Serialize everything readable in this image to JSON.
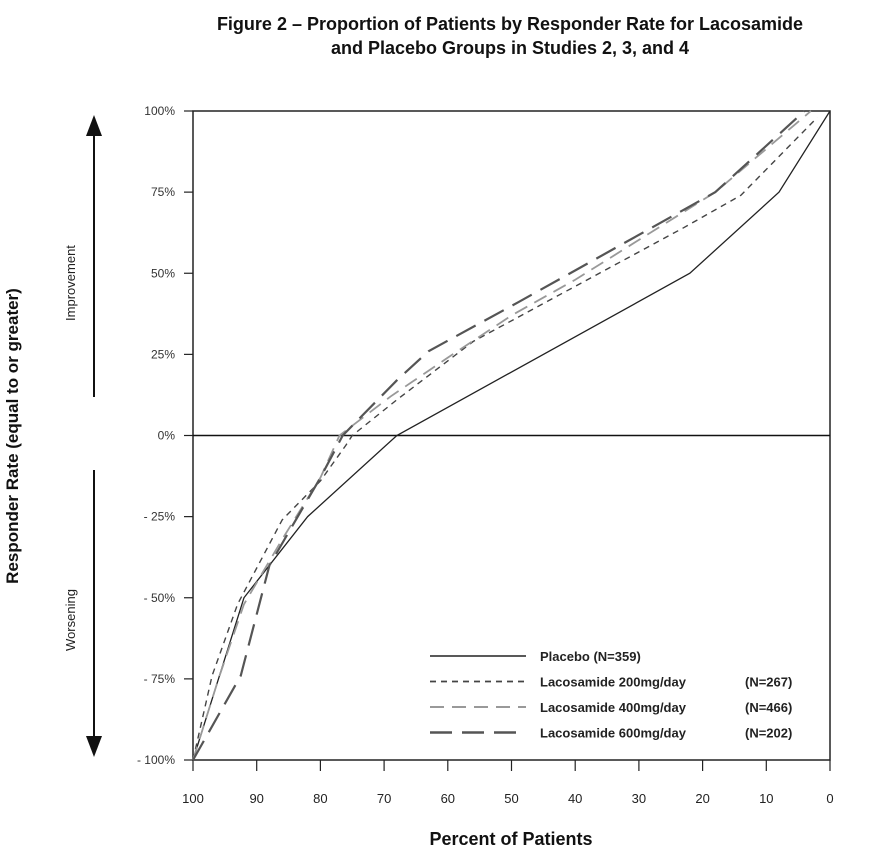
{
  "chart_data": {
    "type": "line",
    "title_line1": "Figure 2 – Proportion of Patients by Responder Rate for Lacosamide",
    "title_line2": "and Placebo Groups in Studies 2, 3, and 4",
    "xlabel": "Percent of Patients",
    "ylabel": "Responder Rate (equal to or greater)",
    "xlim": [
      100,
      0
    ],
    "ylim": [
      -100,
      100
    ],
    "x_reversed": true,
    "xticks": [
      100,
      90,
      80,
      70,
      60,
      50,
      40,
      30,
      20,
      10,
      0
    ],
    "yticks": [
      100,
      75,
      50,
      25,
      0,
      -25,
      -50,
      -75,
      -100
    ],
    "ytick_labels": [
      "100%",
      "75%",
      "50%",
      "25%",
      "0%",
      "- 25%",
      "- 50%",
      "- 75%",
      "- 100%"
    ],
    "annotations": {
      "improvement": "Improvement",
      "worsening": "Worsening"
    },
    "grid": false,
    "reference_line_y": 0,
    "legend_position": "bottom-right",
    "series": [
      {
        "name": "Placebo (N=359)",
        "label": "Placebo (N=359)",
        "n": "",
        "color": "#222222",
        "dash": "solid",
        "points": [
          [
            100,
            -100
          ],
          [
            92,
            -50
          ],
          [
            82,
            -25
          ],
          [
            68,
            0
          ],
          [
            22,
            50
          ],
          [
            8,
            75
          ],
          [
            0,
            100
          ]
        ]
      },
      {
        "name": "Lacosamide 200mg/day (N=267)",
        "label": "Lacosamide 200mg/day",
        "n": "(N=267)",
        "color": "#444444",
        "dash": "short",
        "points": [
          [
            100,
            -100
          ],
          [
            97,
            -74
          ],
          [
            93,
            -52
          ],
          [
            86,
            -26
          ],
          [
            80,
            -14
          ],
          [
            76,
            -3
          ],
          [
            75,
            0
          ],
          [
            68,
            11
          ],
          [
            56,
            29
          ],
          [
            23,
            64
          ],
          [
            14,
            74
          ],
          [
            2,
            98
          ]
        ]
      },
      {
        "name": "Lacosamide 400mg/day (N=466)",
        "label": "Lacosamide 400mg/day",
        "n": "(N=466)",
        "color": "#999999",
        "dash": "medium",
        "points": [
          [
            100,
            -100
          ],
          [
            96,
            -75
          ],
          [
            92,
            -52
          ],
          [
            86,
            -32
          ],
          [
            80,
            -13
          ],
          [
            77,
            0
          ],
          [
            69,
            12
          ],
          [
            60,
            24
          ],
          [
            50,
            37
          ],
          [
            40,
            48
          ],
          [
            18,
            75
          ],
          [
            3,
            100
          ]
        ]
      },
      {
        "name": "Lacosamide 600mg/day (N=202)",
        "label": "Lacosamide 600mg/day",
        "n": "(N=202)",
        "color": "#555555",
        "dash": "long",
        "points": [
          [
            100,
            -100
          ],
          [
            92.5,
            -74
          ],
          [
            88,
            -40
          ],
          [
            80,
            -13
          ],
          [
            76.5,
            0
          ],
          [
            68,
            17
          ],
          [
            63,
            26
          ],
          [
            49,
            41
          ],
          [
            18,
            75
          ],
          [
            4,
            100
          ]
        ]
      }
    ]
  }
}
